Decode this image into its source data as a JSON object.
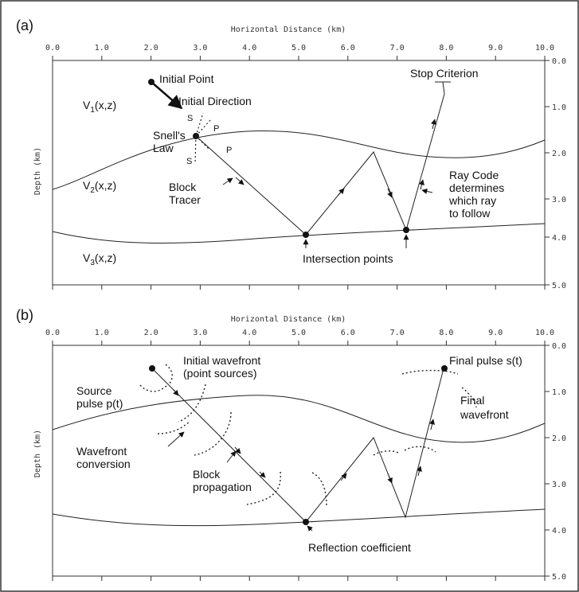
{
  "colors": {
    "ink": "#111111",
    "frame": "#333333",
    "background": "#ffffff"
  },
  "panels": [
    {
      "id": "a",
      "label": "(a)",
      "x_axis_title": "Horizontal Distance (km)",
      "y_axis_title": "Depth (km)",
      "x_ticks": [
        "0.0",
        "1.0",
        "2.0",
        "3.0",
        "4.0",
        "5.0",
        "6.0",
        "7.0",
        "8.0",
        "9.0",
        "10.0"
      ],
      "y_ticks": [
        "0.0",
        "1.0",
        "2.0",
        "3.0",
        "4.0",
        "5.0"
      ],
      "layers": [
        {
          "prefix": "V",
          "sub": "1",
          "suffix": "(x,z)"
        },
        {
          "prefix": "V",
          "sub": "2",
          "suffix": "(x,z)"
        },
        {
          "prefix": "V",
          "sub": "3",
          "suffix": "(x,z)"
        }
      ],
      "annotations": {
        "initial_point": "Initial Point",
        "initial_direction": "Initial Direction",
        "snells_law_1": "Snell's",
        "snells_law_2": "Law",
        "s_upper": "S",
        "p_upper": "P",
        "p_lower": "P",
        "s_lower": "S",
        "block_tracer_1": "Block",
        "block_tracer_2": "Tracer",
        "intersection_points": "Intersection points",
        "stop_criterion": "Stop Criterion",
        "ray_code_1": "Ray Code",
        "ray_code_2": "determines",
        "ray_code_3": "which ray",
        "ray_code_4": "to follow"
      }
    },
    {
      "id": "b",
      "label": "(b)",
      "x_axis_title": "Horizontal Distance (km)",
      "y_axis_title": "Depth (km)",
      "x_ticks": [
        "0.0",
        "1.0",
        "2.0",
        "3.0",
        "4.0",
        "5.0",
        "6.0",
        "7.0",
        "8.0",
        "9.0",
        "10.0"
      ],
      "y_ticks": [
        "0.0",
        "1.0",
        "2.0",
        "3.0",
        "4.0",
        "5.0"
      ],
      "annotations": {
        "initial_wavefront_1": "Initial wavefront",
        "initial_wavefront_2": "(point sources)",
        "source_pulse_1": "Source",
        "source_pulse_2": "pulse p(t)",
        "wavefront_conversion_1": "Wavefront",
        "wavefront_conversion_2": "conversion",
        "block_propagation_1": "Block",
        "block_propagation_2": "propagation",
        "reflection_coefficient": "Reflection coefficient",
        "final_pulse": "Final pulse s(t)",
        "final_wavefront_1": "Final",
        "final_wavefront_2": "wavefront"
      }
    }
  ]
}
